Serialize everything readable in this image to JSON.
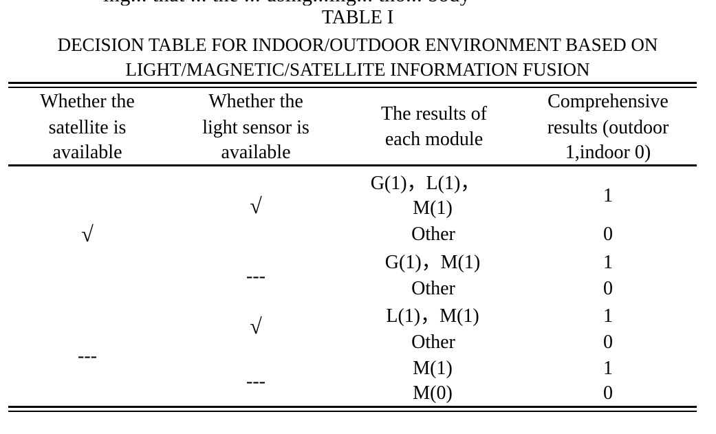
{
  "page": {
    "top_clipped_text": "ing... that ... the ... using...ing... tho... body",
    "table_title": "TABLE I",
    "caption_line1": "DECISION TABLE FOR INDOOR/OUTDOOR ENVIRONMENT BASED ON",
    "caption_line2": "LIGHT/MAGNETIC/SATELLITE INFORMATION FUSION"
  },
  "table": {
    "headers": {
      "col1": [
        "Whether the",
        "satellite is",
        "available"
      ],
      "col2": [
        "Whether the",
        "light sensor is",
        "available"
      ],
      "col3": [
        "The results of",
        "each module"
      ],
      "col4": [
        "Comprehensive",
        "results (outdoor",
        "1,indoor 0)"
      ]
    },
    "satellite_values": [
      "√",
      "---"
    ],
    "light_values": [
      "√",
      "---",
      "√",
      "---"
    ],
    "module_results": [
      "G(1)，L(1)，",
      "M(1)",
      "Other",
      "G(1)，M(1)",
      "Other",
      "L(1)，M(1)",
      "Other",
      "M(1)",
      "M(0)"
    ],
    "comprehensive_results": [
      "1",
      "0",
      "1",
      "0",
      "1",
      "0",
      "1",
      "0"
    ]
  }
}
